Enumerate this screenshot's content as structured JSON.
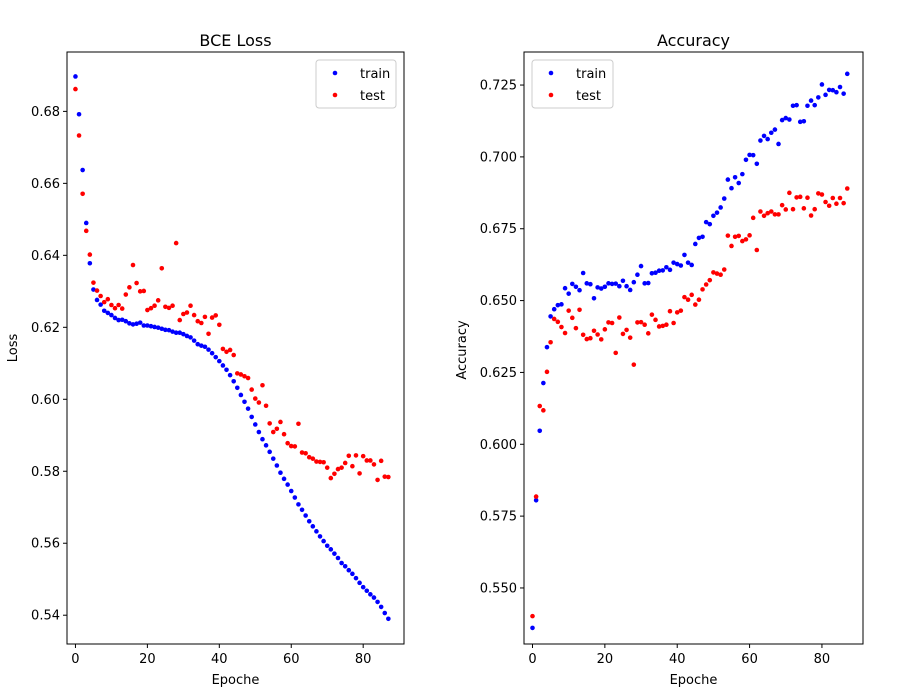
{
  "chart_data": [
    {
      "type": "scatter",
      "title": "BCE Loss",
      "xlabel": "Epoche",
      "ylabel": "Loss",
      "xlim": [
        -2.35,
        91.35
      ],
      "ylim": [
        0.532,
        0.6965
      ],
      "xticks": [
        0,
        20,
        40,
        60,
        80
      ],
      "yticks": [
        0.54,
        0.56,
        0.58,
        0.6,
        0.62,
        0.64,
        0.66,
        0.68
      ],
      "ytick_labels": [
        "0.54",
        "0.56",
        "0.58",
        "0.60",
        "0.62",
        "0.64",
        "0.66",
        "0.68"
      ],
      "legend": "top-right",
      "series": [
        {
          "name": "train",
          "color": "#0000ff",
          "x": [
            0,
            1,
            2,
            3,
            4,
            5,
            6,
            7,
            8,
            9,
            10,
            11,
            12,
            13,
            14,
            15,
            16,
            17,
            18,
            19,
            20,
            21,
            22,
            23,
            24,
            25,
            26,
            27,
            28,
            29,
            30,
            31,
            32,
            33,
            34,
            35,
            36,
            37,
            38,
            39,
            40,
            41,
            42,
            43,
            44,
            45,
            46,
            47,
            48,
            49,
            50,
            51,
            52,
            53,
            54,
            55,
            56,
            57,
            58,
            59,
            60,
            61,
            62,
            63,
            64,
            65,
            66,
            67,
            68,
            69,
            70,
            71,
            72,
            73,
            74,
            75,
            76,
            77,
            78,
            79,
            80,
            81,
            82,
            83,
            84,
            85,
            86,
            87
          ],
          "y": [
            0.6897,
            0.6792,
            0.6637,
            0.649,
            0.6378,
            0.6305,
            0.6276,
            0.6263,
            0.6246,
            0.624,
            0.6234,
            0.6226,
            0.622,
            0.6221,
            0.6217,
            0.6211,
            0.6208,
            0.621,
            0.6213,
            0.6205,
            0.6205,
            0.6203,
            0.6201,
            0.6199,
            0.6196,
            0.6193,
            0.6192,
            0.6188,
            0.6185,
            0.6185,
            0.6181,
            0.6176,
            0.6172,
            0.6163,
            0.6153,
            0.6149,
            0.6146,
            0.6138,
            0.6128,
            0.6117,
            0.6106,
            0.6094,
            0.6082,
            0.6067,
            0.605,
            0.6032,
            0.6012,
            0.5993,
            0.5974,
            0.5951,
            0.593,
            0.5909,
            0.5889,
            0.5872,
            0.5854,
            0.5835,
            0.5816,
            0.5796,
            0.5779,
            0.5763,
            0.5745,
            0.5727,
            0.5708,
            0.5693,
            0.5677,
            0.5661,
            0.5647,
            0.5633,
            0.5619,
            0.5606,
            0.5593,
            0.5583,
            0.5571,
            0.5559,
            0.5545,
            0.5536,
            0.5525,
            0.5515,
            0.5503,
            0.549,
            0.5478,
            0.5468,
            0.5458,
            0.5449,
            0.5437,
            0.5423,
            0.5406,
            0.539
          ]
        },
        {
          "name": "test",
          "color": "#ff0000",
          "x": [
            0,
            1,
            2,
            3,
            4,
            5,
            6,
            7,
            8,
            9,
            10,
            11,
            12,
            13,
            14,
            15,
            16,
            17,
            18,
            19,
            20,
            21,
            22,
            23,
            24,
            25,
            26,
            27,
            28,
            29,
            30,
            31,
            32,
            33,
            34,
            35,
            36,
            37,
            38,
            39,
            40,
            41,
            42,
            43,
            44,
            45,
            46,
            47,
            48,
            49,
            50,
            51,
            52,
            53,
            54,
            55,
            56,
            57,
            58,
            59,
            60,
            61,
            62,
            63,
            64,
            65,
            66,
            67,
            68,
            69,
            70,
            71,
            72,
            73,
            74,
            75,
            76,
            77,
            78,
            79,
            80,
            81,
            82,
            83,
            84,
            85,
            86,
            87
          ],
          "y": [
            0.6862,
            0.6733,
            0.6571,
            0.6468,
            0.6402,
            0.6324,
            0.6302,
            0.6287,
            0.627,
            0.6278,
            0.6262,
            0.6253,
            0.6262,
            0.6252,
            0.6291,
            0.6311,
            0.6373,
            0.6323,
            0.63,
            0.6301,
            0.6248,
            0.6253,
            0.626,
            0.6275,
            0.6364,
            0.6257,
            0.6254,
            0.626,
            0.6434,
            0.622,
            0.6237,
            0.6241,
            0.626,
            0.6234,
            0.6217,
            0.6212,
            0.6229,
            0.6182,
            0.6227,
            0.6233,
            0.6207,
            0.614,
            0.6132,
            0.6137,
            0.6123,
            0.6072,
            0.6069,
            0.6064,
            0.6059,
            0.6027,
            0.6002,
            0.5991,
            0.6039,
            0.5982,
            0.5933,
            0.5909,
            0.5918,
            0.5937,
            0.5903,
            0.5878,
            0.587,
            0.5869,
            0.5932,
            0.5852,
            0.585,
            0.5839,
            0.5835,
            0.5827,
            0.5826,
            0.5825,
            0.581,
            0.5781,
            0.5793,
            0.5806,
            0.581,
            0.5823,
            0.5843,
            0.5814,
            0.5844,
            0.5794,
            0.5842,
            0.583,
            0.583,
            0.5819,
            0.5776,
            0.5829,
            0.5785,
            0.5784
          ]
        }
      ]
    },
    {
      "type": "scatter",
      "title": "Accuracy",
      "xlabel": "Epoche",
      "ylabel": "Accuracy",
      "xlim": [
        -2.35,
        91.35
      ],
      "ylim": [
        0.5305,
        0.7365
      ],
      "xticks": [
        0,
        20,
        40,
        60,
        80
      ],
      "yticks": [
        0.55,
        0.575,
        0.6,
        0.625,
        0.65,
        0.675,
        0.7,
        0.725
      ],
      "ytick_labels": [
        "0.550",
        "0.575",
        "0.600",
        "0.625",
        "0.650",
        "0.675",
        "0.700",
        "0.725"
      ],
      "legend": "top-left",
      "series": [
        {
          "name": "train",
          "color": "#0000ff",
          "x": [
            0,
            1,
            2,
            3,
            4,
            5,
            6,
            7,
            8,
            9,
            10,
            11,
            12,
            13,
            14,
            15,
            16,
            17,
            18,
            19,
            20,
            21,
            22,
            23,
            24,
            25,
            26,
            27,
            28,
            29,
            30,
            31,
            32,
            33,
            34,
            35,
            36,
            37,
            38,
            39,
            40,
            41,
            42,
            43,
            44,
            45,
            46,
            47,
            48,
            49,
            50,
            51,
            52,
            53,
            54,
            55,
            56,
            57,
            58,
            59,
            60,
            61,
            62,
            63,
            64,
            65,
            66,
            67,
            68,
            69,
            70,
            71,
            72,
            73,
            74,
            75,
            76,
            77,
            78,
            79,
            80,
            81,
            82,
            83,
            84,
            85,
            86,
            87
          ],
          "y": [
            0.5361,
            0.5805,
            0.6047,
            0.6213,
            0.6338,
            0.6445,
            0.647,
            0.6484,
            0.6487,
            0.6543,
            0.6524,
            0.6558,
            0.6548,
            0.6536,
            0.6596,
            0.656,
            0.6557,
            0.6508,
            0.6546,
            0.6542,
            0.6548,
            0.656,
            0.6558,
            0.6559,
            0.655,
            0.6569,
            0.655,
            0.6537,
            0.6564,
            0.659,
            0.662,
            0.656,
            0.6561,
            0.6595,
            0.6597,
            0.6604,
            0.6605,
            0.6616,
            0.6607,
            0.6632,
            0.6627,
            0.6622,
            0.6659,
            0.6632,
            0.6624,
            0.6697,
            0.6718,
            0.6722,
            0.6773,
            0.6766,
            0.6795,
            0.6806,
            0.6824,
            0.6855,
            0.6921,
            0.6891,
            0.6929,
            0.6909,
            0.694,
            0.699,
            0.7007,
            0.7006,
            0.6976,
            0.7057,
            0.7073,
            0.7062,
            0.7084,
            0.7095,
            0.7045,
            0.7128,
            0.7135,
            0.713,
            0.7178,
            0.718,
            0.7122,
            0.7124,
            0.7178,
            0.7196,
            0.718,
            0.7207,
            0.7252,
            0.7216,
            0.7233,
            0.7232,
            0.7225,
            0.7243,
            0.722,
            0.7289
          ]
        },
        {
          "name": "test",
          "color": "#ff0000",
          "x": [
            0,
            1,
            2,
            3,
            4,
            5,
            6,
            7,
            8,
            9,
            10,
            11,
            12,
            13,
            14,
            15,
            16,
            17,
            18,
            19,
            20,
            21,
            22,
            23,
            24,
            25,
            26,
            27,
            28,
            29,
            30,
            31,
            32,
            33,
            34,
            35,
            36,
            37,
            38,
            39,
            40,
            41,
            42,
            43,
            44,
            45,
            46,
            47,
            48,
            49,
            50,
            51,
            52,
            53,
            54,
            55,
            56,
            57,
            58,
            59,
            60,
            61,
            62,
            63,
            64,
            65,
            66,
            67,
            68,
            69,
            70,
            71,
            72,
            73,
            74,
            75,
            76,
            77,
            78,
            79,
            80,
            81,
            82,
            83,
            84,
            85,
            86,
            87
          ],
          "y": [
            0.5402,
            0.5818,
            0.6133,
            0.6118,
            0.6252,
            0.6355,
            0.6436,
            0.6426,
            0.6408,
            0.6387,
            0.6465,
            0.644,
            0.6404,
            0.6468,
            0.6381,
            0.6366,
            0.6369,
            0.6395,
            0.6382,
            0.6365,
            0.64,
            0.6424,
            0.6422,
            0.6318,
            0.6441,
            0.6384,
            0.6398,
            0.6371,
            0.6277,
            0.6424,
            0.6425,
            0.6416,
            0.6386,
            0.6451,
            0.6433,
            0.641,
            0.6412,
            0.6416,
            0.6463,
            0.6422,
            0.6459,
            0.6465,
            0.6512,
            0.6503,
            0.652,
            0.6486,
            0.6503,
            0.6539,
            0.6556,
            0.6571,
            0.6598,
            0.6594,
            0.659,
            0.6608,
            0.6726,
            0.669,
            0.6722,
            0.6725,
            0.6707,
            0.6713,
            0.6727,
            0.6788,
            0.6676,
            0.681,
            0.6795,
            0.6804,
            0.681,
            0.68,
            0.68,
            0.6832,
            0.6817,
            0.6875,
            0.6818,
            0.6859,
            0.6861,
            0.6821,
            0.6858,
            0.6796,
            0.6818,
            0.6873,
            0.6869,
            0.6843,
            0.683,
            0.6857,
            0.6837,
            0.6857,
            0.6839,
            0.689
          ]
        }
      ]
    }
  ]
}
